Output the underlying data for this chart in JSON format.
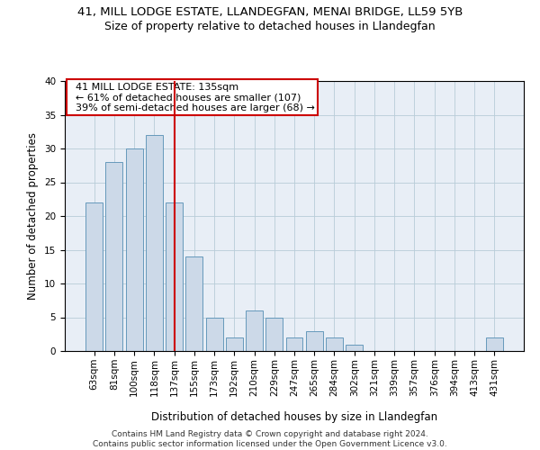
{
  "title_line1": "41, MILL LODGE ESTATE, LLANDEGFAN, MENAI BRIDGE, LL59 5YB",
  "title_line2": "Size of property relative to detached houses in Llandegfan",
  "xlabel": "Distribution of detached houses by size in Llandegfan",
  "ylabel": "Number of detached properties",
  "categories": [
    "63sqm",
    "81sqm",
    "100sqm",
    "118sqm",
    "137sqm",
    "155sqm",
    "173sqm",
    "192sqm",
    "210sqm",
    "229sqm",
    "247sqm",
    "265sqm",
    "284sqm",
    "302sqm",
    "321sqm",
    "339sqm",
    "357sqm",
    "376sqm",
    "394sqm",
    "413sqm",
    "431sqm"
  ],
  "values": [
    22,
    28,
    30,
    32,
    22,
    14,
    5,
    2,
    6,
    5,
    2,
    3,
    2,
    1,
    0,
    0,
    0,
    0,
    0,
    0,
    2
  ],
  "bar_color": "#ccd9e8",
  "bar_edge_color": "#6699bb",
  "highlight_index": 4,
  "highlight_line_color": "#cc0000",
  "annotation_text": "  41 MILL LODGE ESTATE: 135sqm\n  ← 61% of detached houses are smaller (107)\n  39% of semi-detached houses are larger (68) →",
  "annotation_box_color": "#ffffff",
  "annotation_box_edge": "#cc0000",
  "ylim": [
    0,
    40
  ],
  "yticks": [
    0,
    5,
    10,
    15,
    20,
    25,
    30,
    35,
    40
  ],
  "footnote": "Contains HM Land Registry data © Crown copyright and database right 2024.\nContains public sector information licensed under the Open Government Licence v3.0.",
  "grid_color": "#b8ccd8",
  "bg_color": "#e8eef6",
  "title_fontsize": 9.5,
  "subtitle_fontsize": 9,
  "axis_label_fontsize": 8.5,
  "tick_fontsize": 7.5,
  "annotation_fontsize": 8,
  "footnote_fontsize": 6.5
}
